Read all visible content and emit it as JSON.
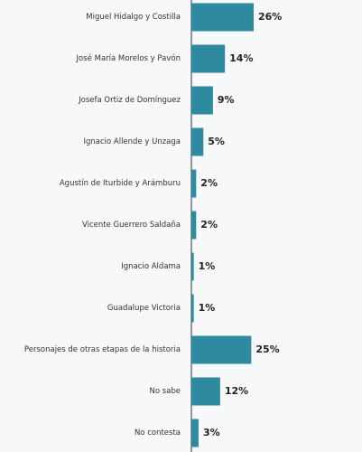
{
  "chart_data": {
    "type": "bar",
    "orientation": "horizontal",
    "categories": [
      "Miguel Hidalgo y Costilla",
      "José María Morelos y Pavón",
      "Josefa Ortiz de Domínguez",
      "Ignacio Allende y Unzaga",
      "Agustín de Iturbide y Arámburu",
      "Vicente Guerrero Saldaña",
      "Ignacio Aldama",
      "Guadalupe Victoria",
      "Personajes de otras etapas de la historia",
      "No sabe",
      "No contesta"
    ],
    "values": [
      26,
      14,
      9,
      5,
      2,
      2,
      1,
      1,
      25,
      12,
      3
    ],
    "value_labels": [
      "26%",
      "14%",
      "9%",
      "5%",
      "2%",
      "2%",
      "1%",
      "1%",
      "25%",
      "12%",
      "3%"
    ],
    "color": "#2e8a9f"
  }
}
